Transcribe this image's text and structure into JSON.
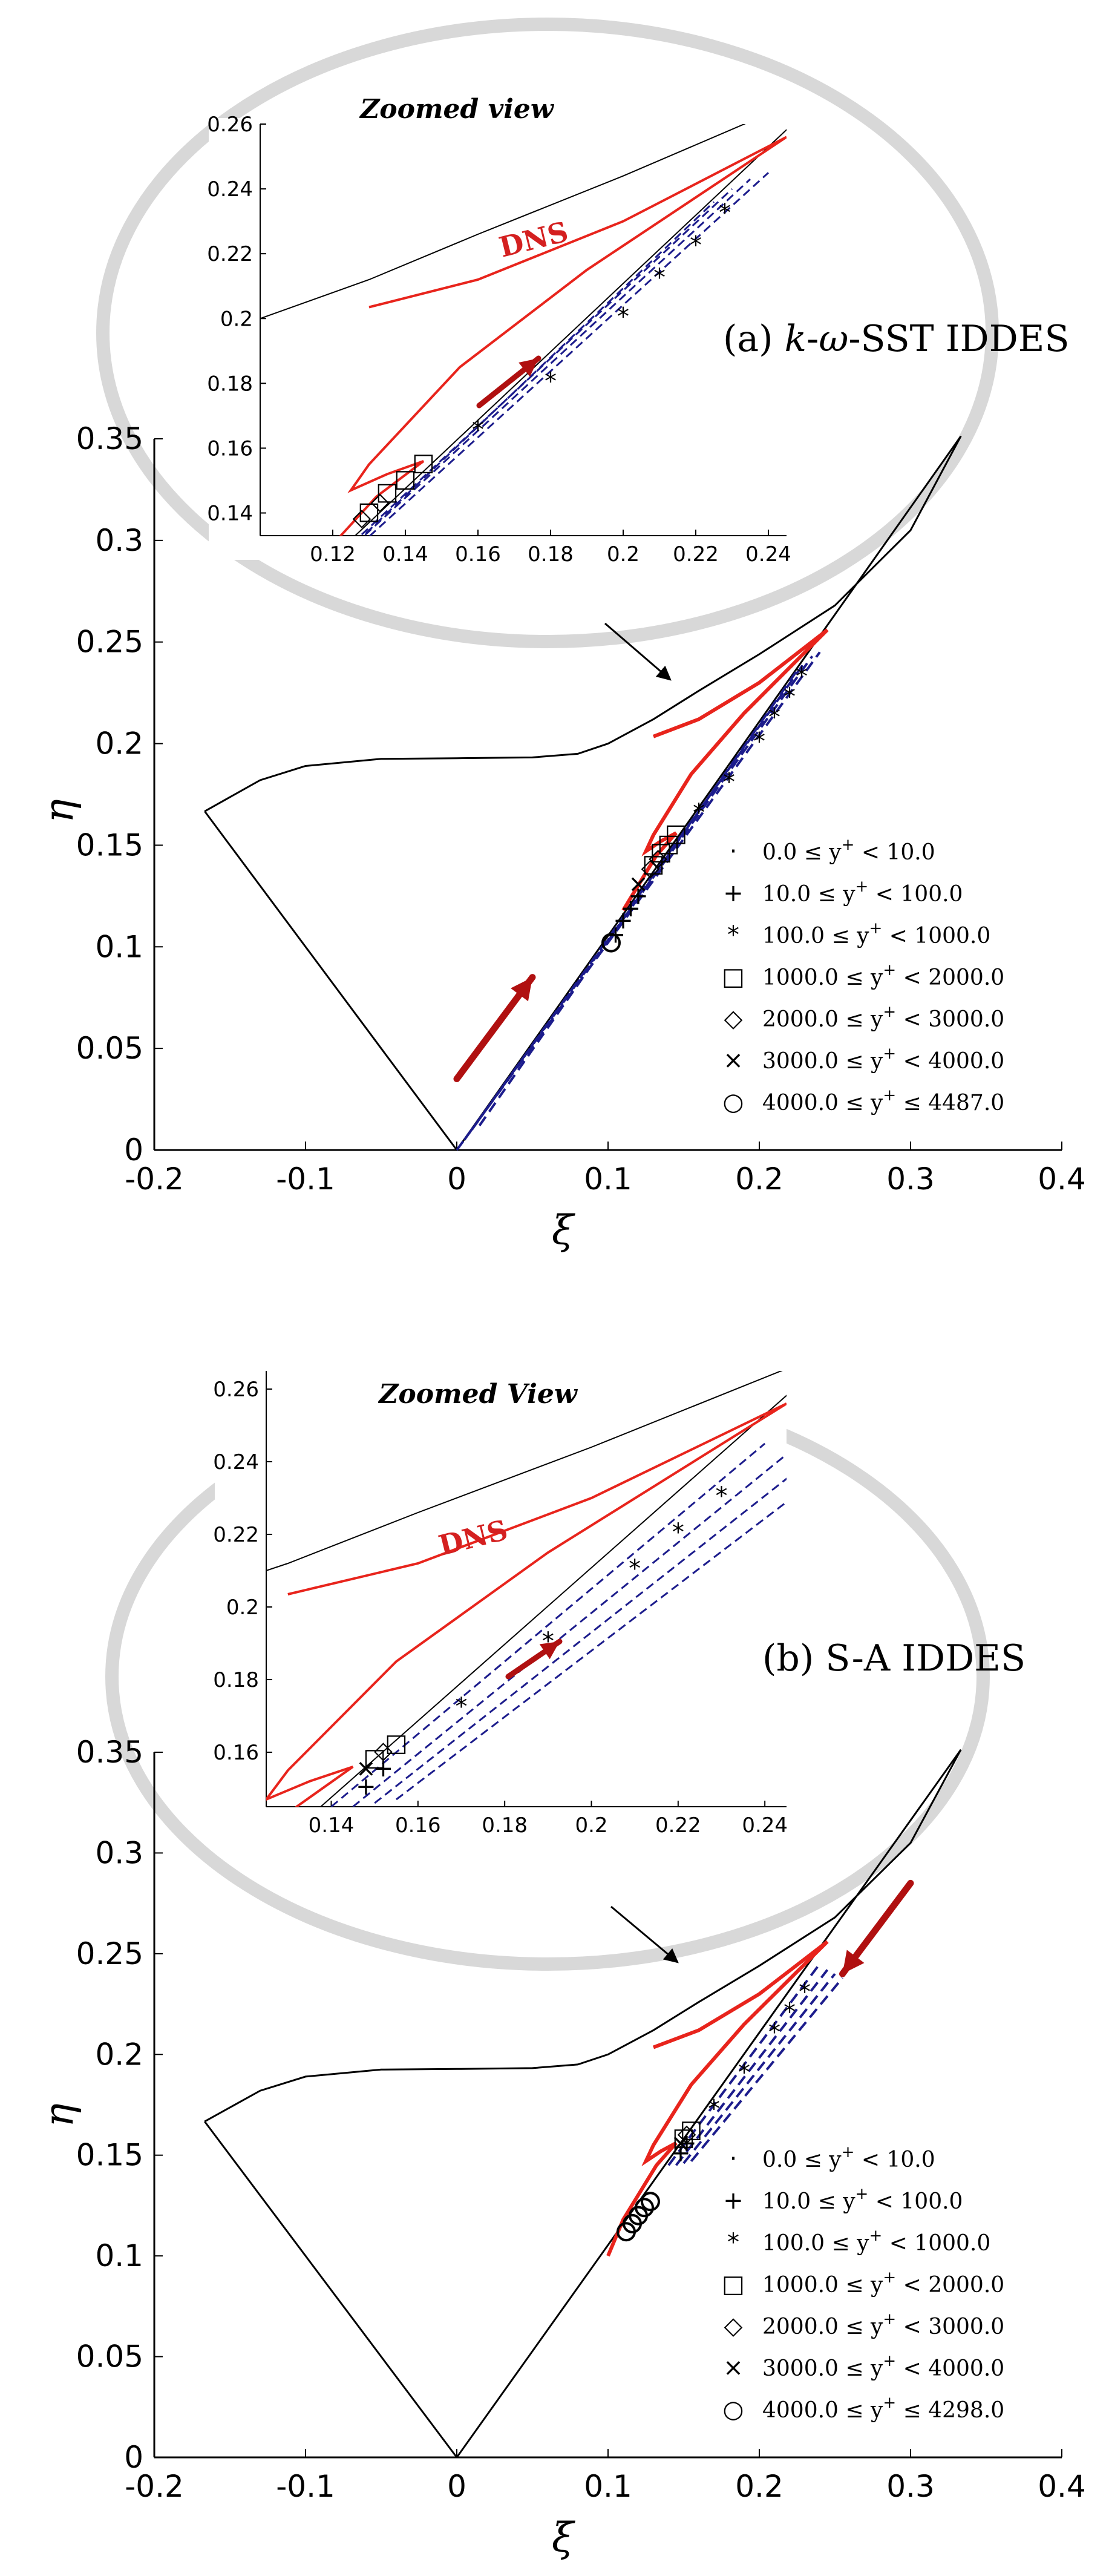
{
  "colors": {
    "dns": "#e8241c",
    "dashed": "#1c1c8c",
    "arrow": "#b01010",
    "ellipse": "#d8d8d8",
    "boundary": "#000000",
    "cyan": "#2aa8d8",
    "green": "#3aa84a",
    "orange": "#f0a030"
  },
  "chart_data": [
    {
      "type": "line",
      "title": "(a) k-ω-SST IDDES",
      "title_parts": {
        "k": "k",
        "omega": "ω",
        "rest": "-SST IDDES",
        "prefix": "(a) ",
        "dash": "-"
      },
      "xlabel": "ξ",
      "ylabel": "η",
      "xlim": [
        -0.2,
        0.4
      ],
      "ylim": [
        0,
        0.35
      ],
      "xticks": [
        "-0.2",
        "-0.1",
        "0",
        "0.1",
        "0.2",
        "0.3",
        "0.4"
      ],
      "yticks": [
        "0",
        "0.05",
        "0.1",
        "0.15",
        "0.2",
        "0.25",
        "0.3",
        "0.35"
      ],
      "boundary": [
        [
          -0.1667,
          0.1667
        ],
        [
          -0.13,
          0.182
        ],
        [
          -0.1,
          0.189
        ],
        [
          -0.05,
          0.1925
        ],
        [
          0.0,
          0.1928
        ],
        [
          0.05,
          0.1932
        ],
        [
          0.08,
          0.195
        ],
        [
          0.1,
          0.2
        ],
        [
          0.13,
          0.212
        ],
        [
          0.16,
          0.226
        ],
        [
          0.2,
          0.244
        ],
        [
          0.25,
          0.268
        ],
        [
          0.3,
          0.305
        ],
        [
          0.3333,
          0.3513
        ]
      ],
      "boundary_left": [
        [
          0,
          0
        ],
        [
          -0.1667,
          0.1667
        ]
      ],
      "boundary_right": [
        [
          0,
          0
        ],
        [
          0.3333,
          0.3513
        ]
      ],
      "dns_upper": [
        [
          0.13,
          0.2035
        ],
        [
          0.16,
          0.212
        ],
        [
          0.2,
          0.23
        ],
        [
          0.245,
          0.256
        ]
      ],
      "dns_loop": [
        [
          0.245,
          0.256
        ],
        [
          0.19,
          0.215
        ],
        [
          0.155,
          0.185
        ],
        [
          0.13,
          0.155
        ],
        [
          0.125,
          0.147
        ],
        [
          0.135,
          0.152
        ],
        [
          0.145,
          0.156
        ],
        [
          0.132,
          0.145
        ],
        [
          0.11,
          0.118
        ]
      ],
      "dashed_lines": [
        [
          [
            0,
            0
          ],
          [
            0.24,
            0.245
          ]
        ],
        [
          [
            0.005,
            0.005
          ],
          [
            0.235,
            0.243
          ]
        ],
        [
          [
            0.01,
            0.01
          ],
          [
            0.23,
            0.24
          ]
        ],
        [
          [
            0.015,
            0.012
          ],
          [
            0.225,
            0.236
          ]
        ]
      ],
      "markers": [
        {
          "range": "0.0 ≤ y⁺ < 10.0",
          "symbol": "·",
          "points": []
        },
        {
          "range": "10.0 ≤ y⁺ < 100.0",
          "symbol": "+",
          "points": [
            [
              0.105,
              0.105
            ],
            [
              0.11,
              0.112
            ],
            [
              0.115,
              0.118
            ],
            [
              0.12,
              0.124
            ]
          ]
        },
        {
          "range": "100.0 ≤ y⁺ < 1000.0",
          "symbol": "*",
          "points": [
            [
              0.16,
              0.165
            ],
            [
              0.18,
              0.18
            ],
            [
              0.2,
              0.2
            ],
            [
              0.21,
              0.212
            ],
            [
              0.22,
              0.222
            ],
            [
              0.228,
              0.232
            ]
          ]
        },
        {
          "range": "1000.0 ≤ y⁺ < 2000.0",
          "symbol": "□",
          "points": [
            [
              0.13,
              0.14
            ],
            [
              0.135,
              0.146
            ],
            [
              0.14,
              0.15
            ],
            [
              0.145,
              0.155
            ]
          ]
        },
        {
          "range": "2000.0 ≤ y⁺ < 3000.0",
          "symbol": "◇",
          "points": [
            [
              0.128,
              0.138
            ],
            [
              0.133,
              0.143
            ]
          ]
        },
        {
          "range": "3000.0 ≤ y⁺ < 4000.0",
          "symbol": "×",
          "points": [
            [
              0.12,
              0.13
            ]
          ]
        },
        {
          "range": "4000.0 ≤ y⁺ ≤ 4487.0",
          "symbol": "○",
          "points": [
            [
              0.102,
              0.102
            ]
          ]
        }
      ],
      "legend_labels": {
        "l0": {
          "pre": "0.0 ≤ y",
          "sup": "+",
          "post": " < 10.0"
        },
        "l1": {
          "pre": "10.0 ≤ y",
          "sup": "+",
          "post": " < 100.0"
        },
        "l2": {
          "pre": "100.0 ≤ y",
          "sup": "+",
          "post": " < 1000.0"
        },
        "l3": {
          "pre": "1000.0 ≤ y",
          "sup": "+",
          "post": " < 2000.0"
        },
        "l4": {
          "pre": "2000.0 ≤ y",
          "sup": "+",
          "post": " < 3000.0"
        },
        "l5": {
          "pre": "3000.0 ≤ y",
          "sup": "+",
          "post": " < 4000.0"
        },
        "l6": {
          "pre": "4000.0 ≤ y",
          "sup": "+",
          "post": " ≤ 4487.0"
        }
      },
      "legend_symbols": [
        "·",
        "+",
        "*",
        "□",
        "◇",
        "×",
        "○"
      ],
      "flow_arrow": {
        "from": [
          0.0,
          0.035
        ],
        "to": [
          0.05,
          0.085
        ]
      },
      "inset": {
        "title": "Zoomed view",
        "annotation": "DNS",
        "xlim": [
          0.1,
          0.245
        ],
        "ylim": [
          0.133,
          0.26
        ],
        "xticks": [
          "0.12",
          "0.14",
          "0.16",
          "0.18",
          "0.2",
          "0.22",
          "0.24"
        ],
        "yticks": [
          "0.14",
          "0.16",
          "0.18",
          "0.2",
          "0.22",
          "0.24",
          "0.26"
        ]
      }
    },
    {
      "type": "line",
      "title": "(b) S-A IDDES",
      "xlabel": "ξ",
      "ylabel": "η",
      "xlim": [
        -0.2,
        0.4
      ],
      "ylim": [
        0,
        0.35
      ],
      "xticks": [
        "-0.2",
        "-0.1",
        "0",
        "0.1",
        "0.2",
        "0.3",
        "0.4"
      ],
      "yticks": [
        "0",
        "0.05",
        "0.1",
        "0.15",
        "0.2",
        "0.25",
        "0.3",
        "0.35"
      ],
      "boundary": [
        [
          -0.1667,
          0.1667
        ],
        [
          -0.13,
          0.182
        ],
        [
          -0.1,
          0.189
        ],
        [
          -0.05,
          0.1925
        ],
        [
          0.0,
          0.1928
        ],
        [
          0.05,
          0.1932
        ],
        [
          0.08,
          0.195
        ],
        [
          0.1,
          0.2
        ],
        [
          0.13,
          0.212
        ],
        [
          0.16,
          0.226
        ],
        [
          0.2,
          0.244
        ],
        [
          0.25,
          0.268
        ],
        [
          0.3,
          0.305
        ],
        [
          0.3333,
          0.3513
        ]
      ],
      "boundary_left": [
        [
          0,
          0
        ],
        [
          -0.1667,
          0.1667
        ]
      ],
      "boundary_right": [
        [
          0,
          0
        ],
        [
          0.3333,
          0.3513
        ]
      ],
      "dns_upper": [
        [
          0.13,
          0.2035
        ],
        [
          0.16,
          0.212
        ],
        [
          0.2,
          0.23
        ],
        [
          0.245,
          0.256
        ]
      ],
      "dns_loop": [
        [
          0.245,
          0.256
        ],
        [
          0.19,
          0.215
        ],
        [
          0.155,
          0.185
        ],
        [
          0.13,
          0.155
        ],
        [
          0.125,
          0.147
        ],
        [
          0.135,
          0.152
        ],
        [
          0.145,
          0.156
        ],
        [
          0.132,
          0.145
        ],
        [
          0.11,
          0.118
        ],
        [
          0.1,
          0.1
        ]
      ],
      "dashed_lines": [
        [
          [
            0.14,
            0.145
          ],
          [
            0.24,
            0.245
          ]
        ],
        [
          [
            0.145,
            0.145
          ],
          [
            0.245,
            0.242
          ]
        ],
        [
          [
            0.15,
            0.146
          ],
          [
            0.25,
            0.24
          ]
        ],
        [
          [
            0.155,
            0.147
          ],
          [
            0.255,
            0.238
          ]
        ]
      ],
      "markers": [
        {
          "range": "0.0 ≤ y⁺ < 10.0",
          "symbol": "·",
          "points": []
        },
        {
          "range": "10.0 ≤ y⁺ < 100.0",
          "symbol": "+",
          "points": [
            [
              0.148,
              0.15
            ],
            [
              0.152,
              0.155
            ]
          ]
        },
        {
          "range": "100.0 ≤ y⁺ < 1000.0",
          "symbol": "*",
          "points": [
            [
              0.17,
              0.172
            ],
            [
              0.19,
              0.19
            ],
            [
              0.21,
              0.21
            ],
            [
              0.22,
              0.22
            ],
            [
              0.23,
              0.23
            ]
          ]
        },
        {
          "range": "1000.0 ≤ y⁺ < 2000.0",
          "symbol": "□",
          "points": [
            [
              0.15,
              0.158
            ],
            [
              0.155,
              0.162
            ]
          ]
        },
        {
          "range": "2000.0 ≤ y⁺ < 3000.0",
          "symbol": "◇",
          "points": [
            [
              0.152,
              0.16
            ]
          ]
        },
        {
          "range": "3000.0 ≤ y⁺ < 4000.0",
          "symbol": "×",
          "points": [
            [
              0.148,
              0.155
            ]
          ]
        },
        {
          "range": "4000.0 ≤ y⁺ ≤ 4298.0",
          "symbol": "○",
          "points": [
            [
              0.112,
              0.112
            ],
            [
              0.116,
              0.116
            ],
            [
              0.12,
              0.12
            ],
            [
              0.124,
              0.124
            ],
            [
              0.128,
              0.127
            ]
          ]
        }
      ],
      "legend_labels": {
        "l0": {
          "pre": "0.0 ≤ y",
          "sup": "+",
          "post": " < 10.0"
        },
        "l1": {
          "pre": "10.0 ≤ y",
          "sup": "+",
          "post": " < 100.0"
        },
        "l2": {
          "pre": "100.0 ≤ y",
          "sup": "+",
          "post": " < 1000.0"
        },
        "l3": {
          "pre": "1000.0 ≤ y",
          "sup": "+",
          "post": " < 2000.0"
        },
        "l4": {
          "pre": "2000.0 ≤ y",
          "sup": "+",
          "post": " < 3000.0"
        },
        "l5": {
          "pre": "3000.0 ≤ y",
          "sup": "+",
          "post": " < 4000.0"
        },
        "l6": {
          "pre": "4000.0 ≤ y",
          "sup": "+",
          "post": " ≤ 4298.0"
        }
      },
      "legend_symbols": [
        "·",
        "+",
        "*",
        "□",
        "◇",
        "×",
        "○"
      ],
      "flow_arrow": {
        "from": [
          0.3,
          0.285
        ],
        "to": [
          0.255,
          0.24
        ]
      },
      "inset": {
        "title": "Zoomed View",
        "annotation": "DNS",
        "xlim": [
          0.125,
          0.245
        ],
        "ylim": [
          0.145,
          0.265
        ],
        "xticks": [
          "0.14",
          "0.16",
          "0.18",
          "0.2",
          "0.22",
          "0.24"
        ],
        "yticks": [
          "0.16",
          "0.18",
          "0.2",
          "0.22",
          "0.24",
          "0.26"
        ]
      }
    }
  ]
}
